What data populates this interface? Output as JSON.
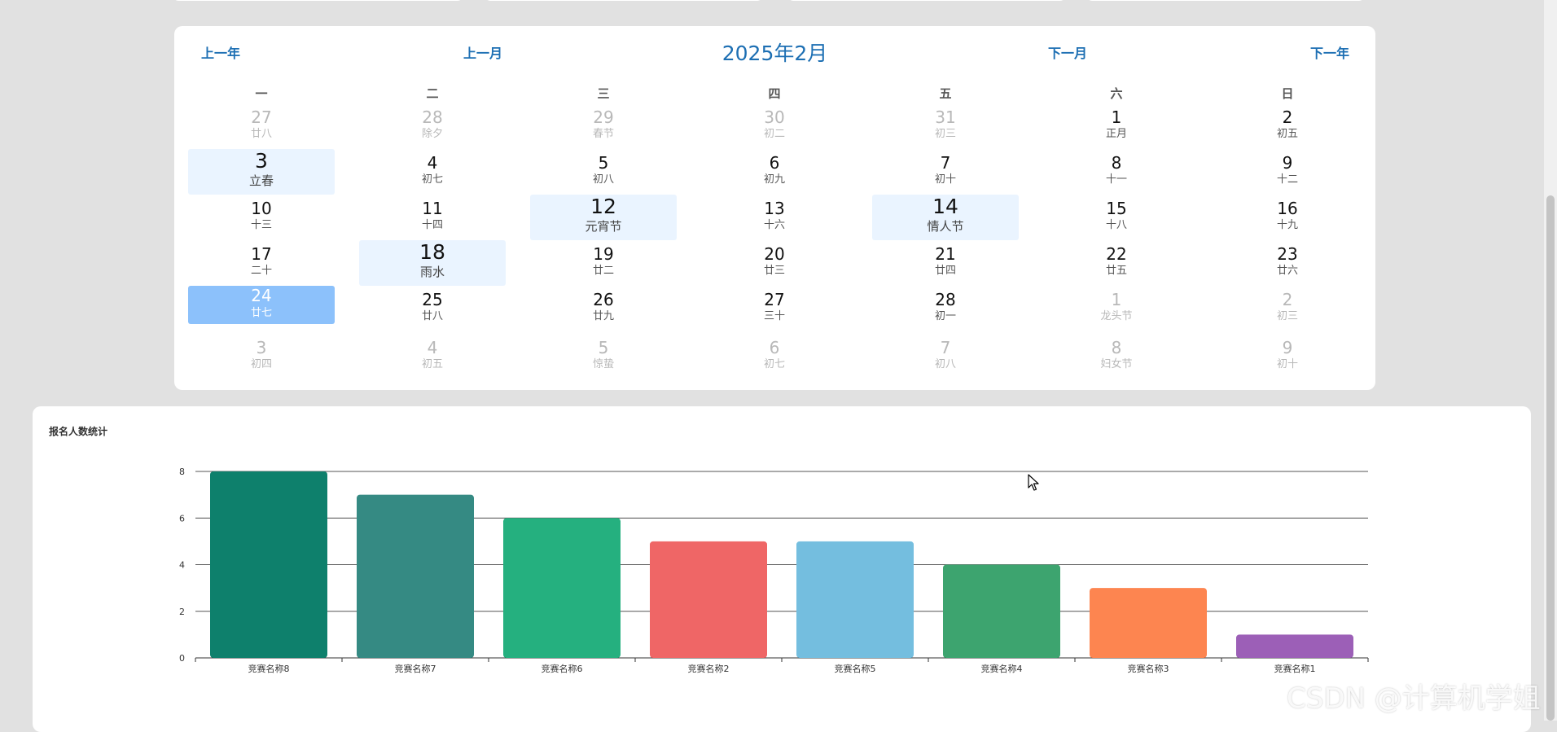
{
  "calendar": {
    "title": "2025年2月",
    "prev_year": "上一年",
    "prev_month": "上一月",
    "next_month": "下一月",
    "next_year": "下一年",
    "weekdays": [
      "一",
      "二",
      "三",
      "四",
      "五",
      "六",
      "日"
    ],
    "weeks": [
      [
        {
          "day": "27",
          "lunar": "廿八",
          "type": "other"
        },
        {
          "day": "28",
          "lunar": "除夕",
          "type": "other"
        },
        {
          "day": "29",
          "lunar": "春节",
          "type": "other"
        },
        {
          "day": "30",
          "lunar": "初二",
          "type": "other"
        },
        {
          "day": "31",
          "lunar": "初三",
          "type": "other"
        },
        {
          "day": "1",
          "lunar": "正月",
          "type": "normal"
        },
        {
          "day": "2",
          "lunar": "初五",
          "type": "normal"
        }
      ],
      [
        {
          "day": "3",
          "lunar": "立春",
          "type": "festival"
        },
        {
          "day": "4",
          "lunar": "初七",
          "type": "normal"
        },
        {
          "day": "5",
          "lunar": "初八",
          "type": "normal"
        },
        {
          "day": "6",
          "lunar": "初九",
          "type": "normal"
        },
        {
          "day": "7",
          "lunar": "初十",
          "type": "normal"
        },
        {
          "day": "8",
          "lunar": "十一",
          "type": "normal"
        },
        {
          "day": "9",
          "lunar": "十二",
          "type": "normal"
        }
      ],
      [
        {
          "day": "10",
          "lunar": "十三",
          "type": "normal"
        },
        {
          "day": "11",
          "lunar": "十四",
          "type": "normal"
        },
        {
          "day": "12",
          "lunar": "元宵节",
          "type": "festival"
        },
        {
          "day": "13",
          "lunar": "十六",
          "type": "normal"
        },
        {
          "day": "14",
          "lunar": "情人节",
          "type": "festival"
        },
        {
          "day": "15",
          "lunar": "十八",
          "type": "normal"
        },
        {
          "day": "16",
          "lunar": "十九",
          "type": "normal"
        }
      ],
      [
        {
          "day": "17",
          "lunar": "二十",
          "type": "normal"
        },
        {
          "day": "18",
          "lunar": "雨水",
          "type": "festival"
        },
        {
          "day": "19",
          "lunar": "廿二",
          "type": "normal"
        },
        {
          "day": "20",
          "lunar": "廿三",
          "type": "normal"
        },
        {
          "day": "21",
          "lunar": "廿四",
          "type": "normal"
        },
        {
          "day": "22",
          "lunar": "廿五",
          "type": "normal"
        },
        {
          "day": "23",
          "lunar": "廿六",
          "type": "normal"
        }
      ],
      [
        {
          "day": "24",
          "lunar": "廿七",
          "type": "selected"
        },
        {
          "day": "25",
          "lunar": "廿八",
          "type": "normal"
        },
        {
          "day": "26",
          "lunar": "廿九",
          "type": "normal"
        },
        {
          "day": "27",
          "lunar": "三十",
          "type": "normal"
        },
        {
          "day": "28",
          "lunar": "初一",
          "type": "normal"
        },
        {
          "day": "1",
          "lunar": "龙头节",
          "type": "other"
        },
        {
          "day": "2",
          "lunar": "初三",
          "type": "other"
        }
      ],
      [
        {
          "day": "3",
          "lunar": "初四",
          "type": "other"
        },
        {
          "day": "4",
          "lunar": "初五",
          "type": "other"
        },
        {
          "day": "5",
          "lunar": "惊蛰",
          "type": "other"
        },
        {
          "day": "6",
          "lunar": "初七",
          "type": "other"
        },
        {
          "day": "7",
          "lunar": "初八",
          "type": "other"
        },
        {
          "day": "8",
          "lunar": "妇女节",
          "type": "other"
        },
        {
          "day": "9",
          "lunar": "初十",
          "type": "other"
        }
      ]
    ]
  },
  "chart": {
    "title": "报名人数统计"
  },
  "chart_data": {
    "type": "bar",
    "title": "报名人数统计",
    "categories": [
      "竞赛名称8",
      "竞赛名称7",
      "竞赛名称6",
      "竞赛名称2",
      "竞赛名称5",
      "竞赛名称4",
      "竞赛名称3",
      "竞赛名称1"
    ],
    "values": [
      8,
      7,
      6,
      5,
      5,
      4,
      3,
      1
    ],
    "colors": [
      "#0e806c",
      "#358a83",
      "#25b07f",
      "#ef6666",
      "#74bedf",
      "#3da46f",
      "#fd8550",
      "#9c5fb7"
    ],
    "yticks": [
      "0",
      "2",
      "4",
      "6",
      "8"
    ],
    "ylim": [
      0,
      8
    ],
    "grid": true,
    "xlabel": "",
    "ylabel": ""
  },
  "watermark": "CSDN @计算机学姐"
}
